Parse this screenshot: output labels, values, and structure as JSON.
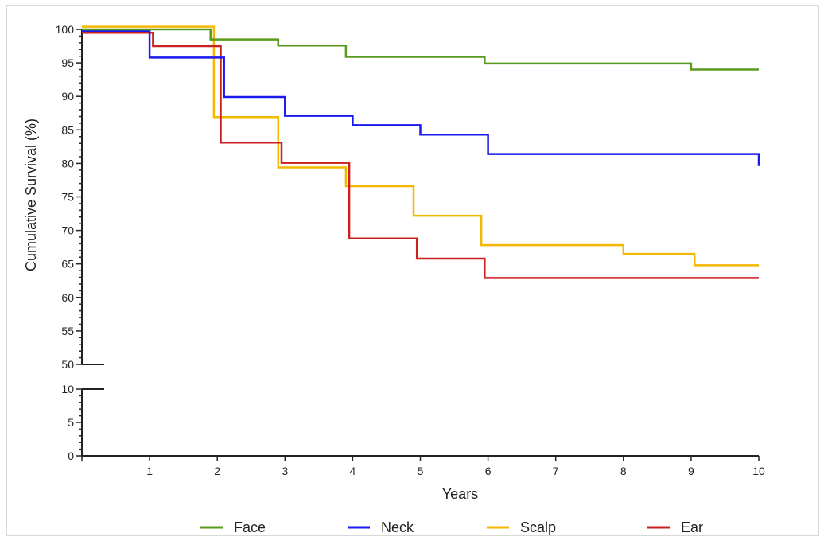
{
  "chart_data": {
    "type": "line",
    "xlabel": "Years",
    "ylabel": "Cumulative Survival (%)",
    "xlim": [
      0,
      10
    ],
    "x_ticks": [
      "1",
      "2",
      "3",
      "4",
      "5",
      "6",
      "7",
      "8",
      "9",
      "10"
    ],
    "y_ticks_upper": [
      "50",
      "55",
      "60",
      "65",
      "70",
      "75",
      "80",
      "85",
      "90",
      "95",
      "100"
    ],
    "y_ticks_lower": [
      "0",
      "5",
      "10"
    ],
    "y_axis_break": [
      10,
      50
    ],
    "grid": false,
    "legend_position": "bottom",
    "series": [
      {
        "name": "Face",
        "color": "#5a9a1e",
        "x": [
          0,
          1.9,
          1.9,
          2.9,
          2.9,
          3.9,
          3.9,
          5.95,
          5.95,
          9,
          9,
          10
        ],
        "y": [
          100,
          100,
          98.5,
          98.5,
          97.6,
          97.6,
          95.9,
          95.9,
          94.9,
          94.9,
          94.0,
          94.0
        ]
      },
      {
        "name": "Neck",
        "color": "#1a1aef",
        "x": [
          0,
          1,
          1,
          2.1,
          2.1,
          3,
          3,
          4,
          4,
          5,
          5,
          6,
          6,
          10,
          10
        ],
        "y": [
          99.8,
          99.8,
          95.8,
          95.8,
          89.9,
          89.9,
          87.1,
          87.1,
          85.7,
          85.7,
          84.3,
          84.3,
          81.4,
          81.4,
          79.6
        ]
      },
      {
        "name": "Scalp",
        "color": "#f5b800",
        "x": [
          0,
          1.95,
          1.95,
          2.9,
          2.9,
          3.9,
          3.9,
          4.9,
          4.9,
          5.9,
          5.9,
          8,
          8,
          9.05,
          9.05,
          10
        ],
        "y": [
          100.4,
          100.4,
          86.9,
          86.9,
          79.4,
          79.4,
          76.6,
          76.6,
          72.2,
          72.2,
          67.8,
          67.8,
          66.5,
          66.5,
          64.8,
          64.8
        ]
      },
      {
        "name": "Ear",
        "color": "#cc1f1f",
        "x": [
          0,
          1.05,
          1.05,
          2.05,
          2.05,
          2.95,
          2.95,
          3.95,
          3.95,
          4.95,
          4.95,
          5.95,
          5.95,
          10
        ],
        "y": [
          99.5,
          99.5,
          97.5,
          97.5,
          83.1,
          83.1,
          80.1,
          80.1,
          68.8,
          68.8,
          65.8,
          65.8,
          62.9,
          62.9
        ]
      }
    ]
  }
}
